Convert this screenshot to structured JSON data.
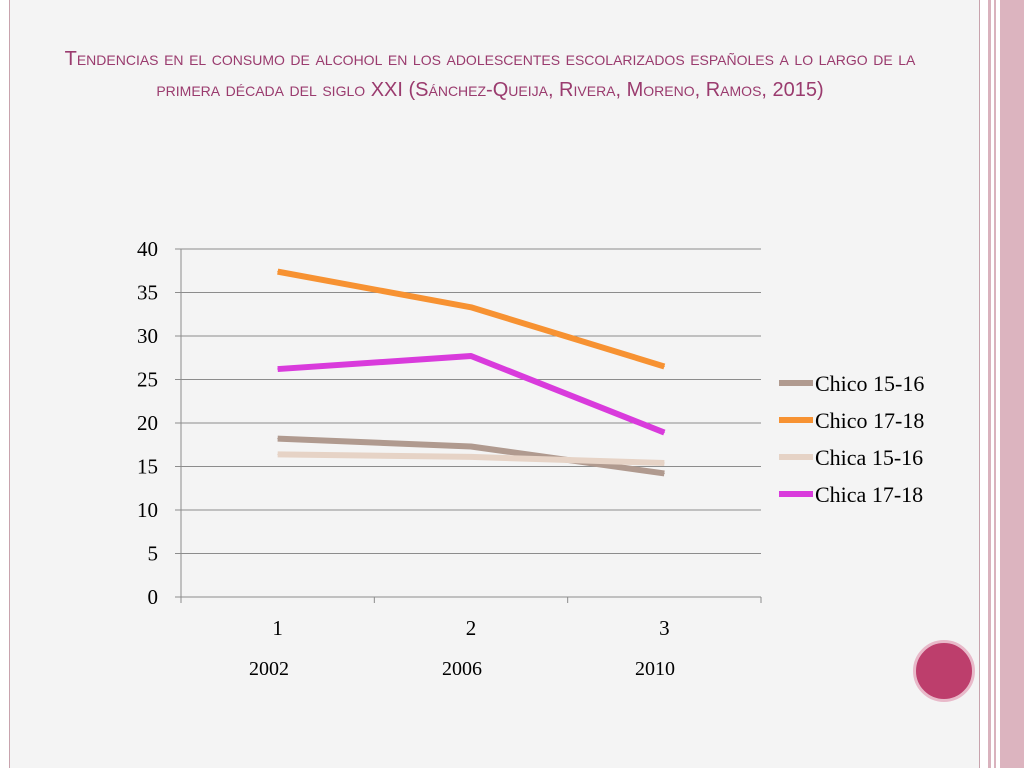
{
  "slide": {
    "title": "Tendencias en el consumo de alcohol en los adolescentes escolarizados españoles a lo largo de la primera década del siglo XXI (Sánchez-Queija, Rivera, Moreno, Ramos, 2015)",
    "accent_color": "#bd3e6c"
  },
  "years": [
    "2002",
    "2006",
    "2010"
  ],
  "chart_data": {
    "type": "line",
    "categories": [
      "1",
      "2",
      "3"
    ],
    "ylim": [
      0,
      40
    ],
    "yticks": [
      0,
      5,
      10,
      15,
      20,
      25,
      30,
      35,
      40
    ],
    "grid": true,
    "legend_position": "right",
    "series": [
      {
        "name": "Chico 15-16",
        "values": [
          18.2,
          17.3,
          14.2
        ],
        "color": "#b09a8f"
      },
      {
        "name": "Chico 17-18",
        "values": [
          37.4,
          33.3,
          26.5
        ],
        "color": "#f79232"
      },
      {
        "name": "Chica 15-16",
        "values": [
          16.4,
          16.1,
          15.4
        ],
        "color": "#e6d3c6"
      },
      {
        "name": "Chica 17-18",
        "values": [
          26.2,
          27.7,
          18.9
        ],
        "color": "#d93bdc"
      }
    ]
  }
}
